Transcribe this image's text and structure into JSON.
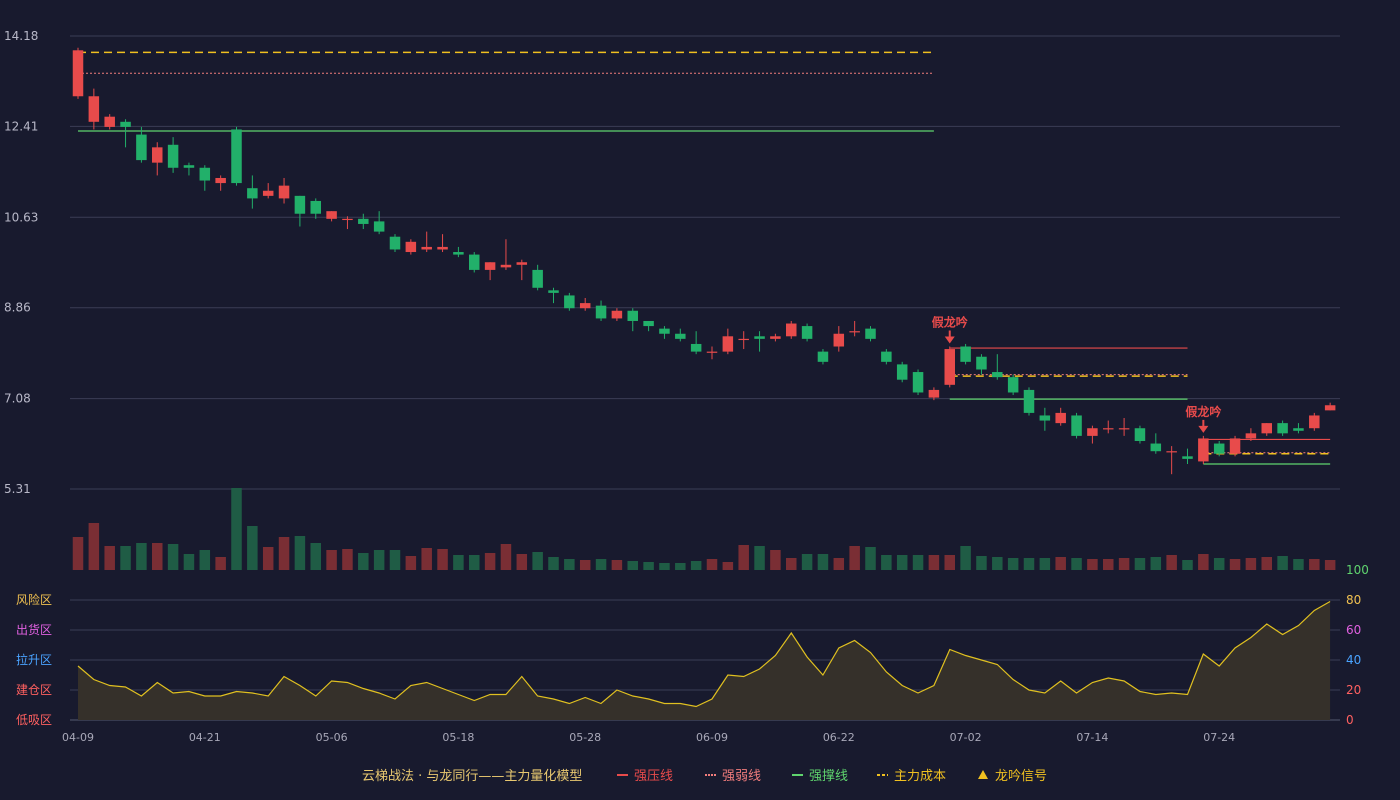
{
  "colors": {
    "up": "#e84b4b",
    "down": "#22b06a",
    "vol_up": "#7a2e34",
    "vol_down": "#1f5c45",
    "pressure": "#e84b4b",
    "weak": "#f07c7c",
    "support": "#5fd46e",
    "cost": "#f0c020",
    "osc_line": "#e0c020",
    "osc_fill": "#35302a",
    "background": "#181a2e"
  },
  "chart_data": [
    {
      "type": "candlestick",
      "title": "",
      "ylim": [
        5.31,
        14.18
      ],
      "y_ticks": [
        "14.18",
        "12.41",
        "10.63",
        "8.86",
        "7.08",
        "5.31"
      ],
      "x_ticks": [
        {
          "label": "04-09",
          "index": 0
        },
        {
          "label": "04-21",
          "index": 8
        },
        {
          "label": "05-06",
          "index": 16
        },
        {
          "label": "05-18",
          "index": 24
        },
        {
          "label": "05-28",
          "index": 32
        },
        {
          "label": "06-09",
          "index": 40
        },
        {
          "label": "06-22",
          "index": 48
        },
        {
          "label": "07-02",
          "index": 56
        },
        {
          "label": "07-14",
          "index": 64
        },
        {
          "label": "07-24",
          "index": 72
        }
      ],
      "candles": [
        [
          13.0,
          13.9,
          13.95,
          12.95
        ],
        [
          12.5,
          13.0,
          13.15,
          12.35
        ],
        [
          12.4,
          12.6,
          12.65,
          12.35
        ],
        [
          12.5,
          12.4,
          12.55,
          12.0
        ],
        [
          12.25,
          11.75,
          12.4,
          11.7
        ],
        [
          11.7,
          12.0,
          12.1,
          11.45
        ],
        [
          12.05,
          11.6,
          12.2,
          11.5
        ],
        [
          11.65,
          11.6,
          11.7,
          11.45
        ],
        [
          11.6,
          11.35,
          11.65,
          11.15
        ],
        [
          11.3,
          11.4,
          11.45,
          11.15
        ],
        [
          12.35,
          11.3,
          12.4,
          11.25
        ],
        [
          11.2,
          11.0,
          11.45,
          10.8
        ],
        [
          11.05,
          11.15,
          11.3,
          11.0
        ],
        [
          11.0,
          11.25,
          11.4,
          10.9
        ],
        [
          11.05,
          10.7,
          11.05,
          10.45
        ],
        [
          10.95,
          10.7,
          11.0,
          10.6
        ],
        [
          10.6,
          10.75,
          10.75,
          10.55
        ],
        [
          10.6,
          10.6,
          10.65,
          10.4
        ],
        [
          10.6,
          10.5,
          10.7,
          10.4
        ],
        [
          10.55,
          10.35,
          10.75,
          10.3
        ],
        [
          10.25,
          10.0,
          10.3,
          9.95
        ],
        [
          9.95,
          10.15,
          10.2,
          9.9
        ],
        [
          10.0,
          10.05,
          10.35,
          9.95
        ],
        [
          10.0,
          10.05,
          10.3,
          9.95
        ],
        [
          9.95,
          9.9,
          10.05,
          9.85
        ],
        [
          9.9,
          9.6,
          9.95,
          9.55
        ],
        [
          9.6,
          9.75,
          9.75,
          9.4
        ],
        [
          9.65,
          9.7,
          10.2,
          9.6
        ],
        [
          9.7,
          9.75,
          9.8,
          9.4
        ],
        [
          9.6,
          9.25,
          9.7,
          9.2
        ],
        [
          9.2,
          9.15,
          9.25,
          8.95
        ],
        [
          9.1,
          8.85,
          9.15,
          8.8
        ],
        [
          8.85,
          8.95,
          9.05,
          8.8
        ],
        [
          8.9,
          8.65,
          9.0,
          8.6
        ],
        [
          8.65,
          8.8,
          8.85,
          8.6
        ],
        [
          8.8,
          8.6,
          8.85,
          8.4
        ],
        [
          8.6,
          8.5,
          8.6,
          8.4
        ],
        [
          8.45,
          8.35,
          8.5,
          8.25
        ],
        [
          8.35,
          8.25,
          8.45,
          8.2
        ],
        [
          8.15,
          8.0,
          8.4,
          7.95
        ],
        [
          8.0,
          8.0,
          8.1,
          7.85
        ],
        [
          8.0,
          8.3,
          8.45,
          7.95
        ],
        [
          8.25,
          8.25,
          8.4,
          8.05
        ],
        [
          8.3,
          8.25,
          8.4,
          8.0
        ],
        [
          8.25,
          8.3,
          8.35,
          8.2
        ],
        [
          8.3,
          8.55,
          8.6,
          8.25
        ],
        [
          8.5,
          8.25,
          8.55,
          8.2
        ],
        [
          8.0,
          7.8,
          8.05,
          7.75
        ],
        [
          8.1,
          8.35,
          8.5,
          8.0
        ],
        [
          8.4,
          8.4,
          8.6,
          8.3
        ],
        [
          8.45,
          8.25,
          8.5,
          8.2
        ],
        [
          8.0,
          7.8,
          8.05,
          7.75
        ],
        [
          7.75,
          7.45,
          7.8,
          7.4
        ],
        [
          7.6,
          7.2,
          7.65,
          7.15
        ],
        [
          7.1,
          7.25,
          7.3,
          7.05
        ],
        [
          7.35,
          8.05,
          8.1,
          7.3
        ],
        [
          8.1,
          7.8,
          8.15,
          7.75
        ],
        [
          7.9,
          7.65,
          7.95,
          7.55
        ],
        [
          7.6,
          7.5,
          7.95,
          7.45
        ],
        [
          7.5,
          7.2,
          7.55,
          7.15
        ],
        [
          7.25,
          6.8,
          7.3,
          6.75
        ],
        [
          6.75,
          6.65,
          6.9,
          6.45
        ],
        [
          6.6,
          6.8,
          6.9,
          6.55
        ],
        [
          6.75,
          6.35,
          6.8,
          6.3
        ],
        [
          6.35,
          6.5,
          6.55,
          6.2
        ],
        [
          6.5,
          6.5,
          6.65,
          6.4
        ],
        [
          6.5,
          6.5,
          6.7,
          6.35
        ],
        [
          6.5,
          6.25,
          6.55,
          6.2
        ],
        [
          6.2,
          6.05,
          6.4,
          6.0
        ],
        [
          6.05,
          6.05,
          6.15,
          5.6
        ],
        [
          5.95,
          5.9,
          6.1,
          5.8
        ],
        [
          5.85,
          6.3,
          6.35,
          5.8
        ],
        [
          6.2,
          6.0,
          6.25,
          5.95
        ],
        [
          6.0,
          6.3,
          6.35,
          5.95
        ],
        [
          6.3,
          6.4,
          6.5,
          6.25
        ],
        [
          6.4,
          6.6,
          6.6,
          6.35
        ],
        [
          6.6,
          6.4,
          6.65,
          6.35
        ],
        [
          6.5,
          6.45,
          6.6,
          6.4
        ],
        [
          6.5,
          6.75,
          6.8,
          6.45
        ],
        [
          6.85,
          6.95,
          7.0,
          6.85
        ]
      ],
      "volume": [
        33,
        47,
        24,
        24,
        27,
        27,
        26,
        16,
        20,
        13,
        82,
        44,
        23,
        33,
        34,
        27,
        20,
        21,
        17,
        20,
        20,
        14,
        22,
        21,
        15,
        15,
        17,
        26,
        16,
        18,
        13,
        11,
        10,
        11,
        10,
        9,
        8,
        7,
        7,
        9,
        11,
        8,
        25,
        24,
        20,
        12,
        16,
        16,
        12,
        24,
        23,
        15,
        15,
        15,
        15,
        15,
        24,
        14,
        13,
        12,
        12,
        12,
        13,
        12,
        11,
        11,
        12,
        12,
        13,
        15,
        10,
        16,
        12,
        11,
        12,
        13,
        14,
        11,
        11,
        10
      ],
      "reference_lines": [
        {
          "name": "主力成本",
          "style": "cost",
          "value": 13.86,
          "from": 0,
          "to": 54
        },
        {
          "name": "强弱线",
          "style": "weak",
          "value": 13.45,
          "from": 0,
          "to": 54
        },
        {
          "name": "强撑线",
          "style": "support",
          "value": 12.32,
          "from": 0,
          "to": 54
        },
        {
          "name": "强压线",
          "style": "pressure",
          "value": 8.07,
          "from": 55,
          "to": 70
        },
        {
          "name": "强弱线",
          "style": "weak",
          "value": 7.55,
          "from": 55,
          "to": 70
        },
        {
          "name": "主力成本",
          "style": "cost",
          "value": 7.52,
          "from": 55,
          "to": 70
        },
        {
          "name": "强撑线",
          "style": "support",
          "value": 7.07,
          "from": 55,
          "to": 70
        },
        {
          "name": "强压线",
          "style": "pressure",
          "value": 6.28,
          "from": 71,
          "to": 79
        },
        {
          "name": "强弱线",
          "style": "weak",
          "value": 6.02,
          "from": 71,
          "to": 79
        },
        {
          "name": "主力成本",
          "style": "cost",
          "value": 6.0,
          "from": 71,
          "to": 79
        },
        {
          "name": "强撑线",
          "style": "support",
          "value": 5.8,
          "from": 71,
          "to": 79
        }
      ],
      "signals": [
        {
          "index": 55,
          "label": "假龙吟"
        },
        {
          "index": 71,
          "label": "假龙吟"
        }
      ]
    },
    {
      "type": "area",
      "ylim": [
        0,
        100
      ],
      "y_ticks": [
        "100",
        "80",
        "60",
        "40",
        "20",
        "0"
      ],
      "zones": [
        {
          "label": "风险区",
          "color": "#f0c050"
        },
        {
          "label": "出货区",
          "color": "#e060e0"
        },
        {
          "label": "拉升区",
          "color": "#4aa3ff"
        },
        {
          "label": "建仓区",
          "color": "#ff6060"
        },
        {
          "label": "低吸区",
          "color": "#ff6060"
        }
      ],
      "values": [
        36,
        27,
        23,
        22,
        16,
        25,
        18,
        19,
        16,
        16,
        19,
        18,
        16,
        29,
        23,
        16,
        26,
        25,
        21,
        18,
        14,
        23,
        25,
        21,
        17,
        13,
        17,
        17,
        29,
        16,
        14,
        11,
        15,
        11,
        20,
        16,
        14,
        11,
        11,
        9,
        14,
        30,
        29,
        34,
        43,
        58,
        42,
        30,
        48,
        53,
        45,
        32,
        23,
        18,
        23,
        47,
        43,
        40,
        37,
        27,
        20,
        18,
        26,
        18,
        25,
        28,
        26,
        19,
        17,
        18,
        17,
        44,
        36,
        48,
        55,
        64,
        57,
        63,
        73,
        79
      ]
    }
  ],
  "legend": {
    "title": "云梯战法 · 与龙同行——主力量化模型",
    "items": [
      {
        "label": "强压线",
        "style": "pressure"
      },
      {
        "label": "强弱线",
        "style": "weak"
      },
      {
        "label": "强撑线",
        "style": "support"
      },
      {
        "label": "主力成本",
        "style": "cost"
      },
      {
        "label": "龙吟信号",
        "style": "signal"
      }
    ]
  }
}
